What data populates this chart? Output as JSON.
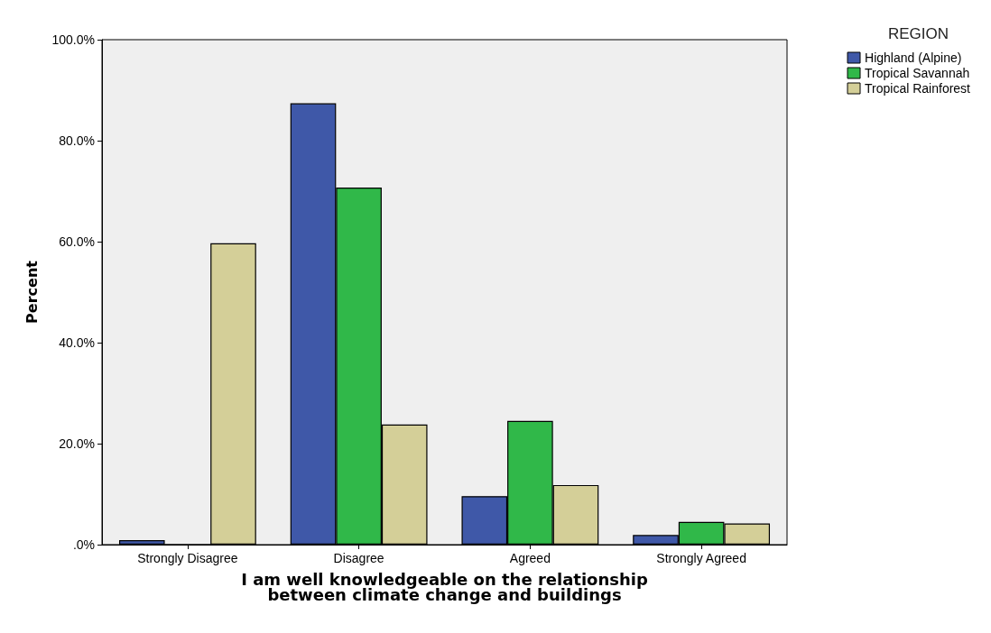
{
  "chart_data": {
    "type": "bar",
    "xlabel": "I am well knowledgeable on the relationship\nbetween climate change and buildings",
    "ylabel": "Percent",
    "legend_title": "REGION",
    "legend": "top right",
    "categories": [
      "Strongly Disagree",
      "Disagree",
      "Agreed",
      "Strongly Agreed"
    ],
    "series": [
      {
        "name": "Highland (Alpine)",
        "color": "#3f58a8",
        "values": [
          0.9,
          87.4,
          9.6,
          1.9
        ]
      },
      {
        "name": "Tropical Savannah",
        "color": "#30b849",
        "values": [
          0,
          70.7,
          24.5,
          4.5
        ]
      },
      {
        "name": "Tropical Rainforest",
        "color": "#d4cf98",
        "values": [
          59.7,
          23.8,
          11.8,
          4.2
        ]
      }
    ],
    "ylim": [
      0,
      100
    ],
    "yticks": [
      {
        "value": 0,
        "label": ".0%"
      },
      {
        "value": 20,
        "label": "20.0%"
      },
      {
        "value": 40,
        "label": "40.0%"
      },
      {
        "value": 60,
        "label": "60.0%"
      },
      {
        "value": 80,
        "label": "80.0%"
      },
      {
        "value": 100,
        "label": "100.0%"
      }
    ],
    "grid": false
  }
}
